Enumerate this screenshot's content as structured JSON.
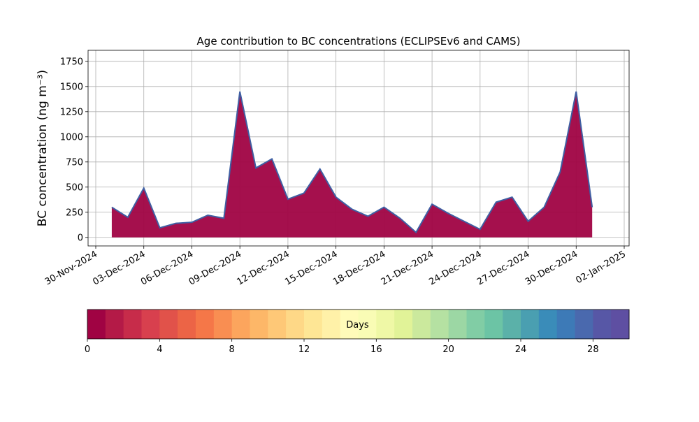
{
  "chart_data": {
    "type": "area",
    "title": "Age contribution to BC concentrations (ECLIPSEv6 and CAMS)",
    "y_label": "BC concentration (ng m⁻³)",
    "x": [
      "2024-12-01",
      "2024-12-02",
      "2024-12-03",
      "2024-12-04",
      "2024-12-05",
      "2024-12-06",
      "2024-12-07",
      "2024-12-08",
      "2024-12-09",
      "2024-12-10",
      "2024-12-11",
      "2024-12-12",
      "2024-12-13",
      "2024-12-14",
      "2024-12-15",
      "2024-12-16",
      "2024-12-17",
      "2024-12-18",
      "2024-12-19",
      "2024-12-20",
      "2024-12-21",
      "2024-12-22",
      "2024-12-23",
      "2024-12-24",
      "2024-12-25",
      "2024-12-26",
      "2024-12-27",
      "2024-12-28",
      "2024-12-29",
      "2024-12-30",
      "2024-12-31"
    ],
    "series": [
      {
        "color": "#3f5fa3",
        "fill": "#a00343",
        "values": [
          300,
          200,
          490,
          95,
          140,
          150,
          220,
          190,
          1450,
          690,
          780,
          380,
          440,
          680,
          400,
          280,
          210,
          300,
          190,
          50,
          330,
          240,
          160,
          80,
          350,
          400,
          160,
          300,
          650,
          1450,
          300
        ]
      }
    ],
    "xlim": [
      "2024-11-30",
      "2025-01-02"
    ],
    "xticks": [
      {
        "value": "2024-11-30",
        "label": "30-Nov-2024"
      },
      {
        "value": "2024-12-03",
        "label": "03-Dec-2024"
      },
      {
        "value": "2024-12-06",
        "label": "06-Dec-2024"
      },
      {
        "value": "2024-12-09",
        "label": "09-Dec-2024"
      },
      {
        "value": "2024-12-12",
        "label": "12-Dec-2024"
      },
      {
        "value": "2024-12-15",
        "label": "15-Dec-2024"
      },
      {
        "value": "2024-12-18",
        "label": "18-Dec-2024"
      },
      {
        "value": "2024-12-21",
        "label": "21-Dec-2024"
      },
      {
        "value": "2024-12-24",
        "label": "24-Dec-2024"
      },
      {
        "value": "2024-12-27",
        "label": "27-Dec-2024"
      },
      {
        "value": "2024-12-30",
        "label": "30-Dec-2024"
      },
      {
        "value": "2025-01-02",
        "label": "02-Jan-2025"
      }
    ],
    "ylim": [
      -85,
      1860
    ],
    "yticks": [
      0,
      250,
      500,
      750,
      1000,
      1250,
      1500,
      1750
    ],
    "grid": true,
    "colorbar": {
      "label": "Days",
      "lim": [
        0,
        30
      ],
      "ticks": [
        0,
        4,
        8,
        12,
        16,
        20,
        24,
        28
      ],
      "colors": [
        "#a00343",
        "#b41a47",
        "#c72c4a",
        "#d8404e",
        "#e1524a",
        "#ec6446",
        "#f57748",
        "#f98e52",
        "#fca55d",
        "#fdb768",
        "#fec877",
        "#fed887",
        "#fee695",
        "#fff1a8",
        "#fffbb9",
        "#f9fcb5",
        "#eff8a6",
        "#e1f398",
        "#cbe99d",
        "#b5e1a2",
        "#9cd7a4",
        "#81cda5",
        "#6cc4a5",
        "#5bb1a9",
        "#4a9fb1",
        "#3a8cb9",
        "#3d7ab7",
        "#4a69ae",
        "#5757a6",
        "#5e4fa2"
      ]
    }
  }
}
